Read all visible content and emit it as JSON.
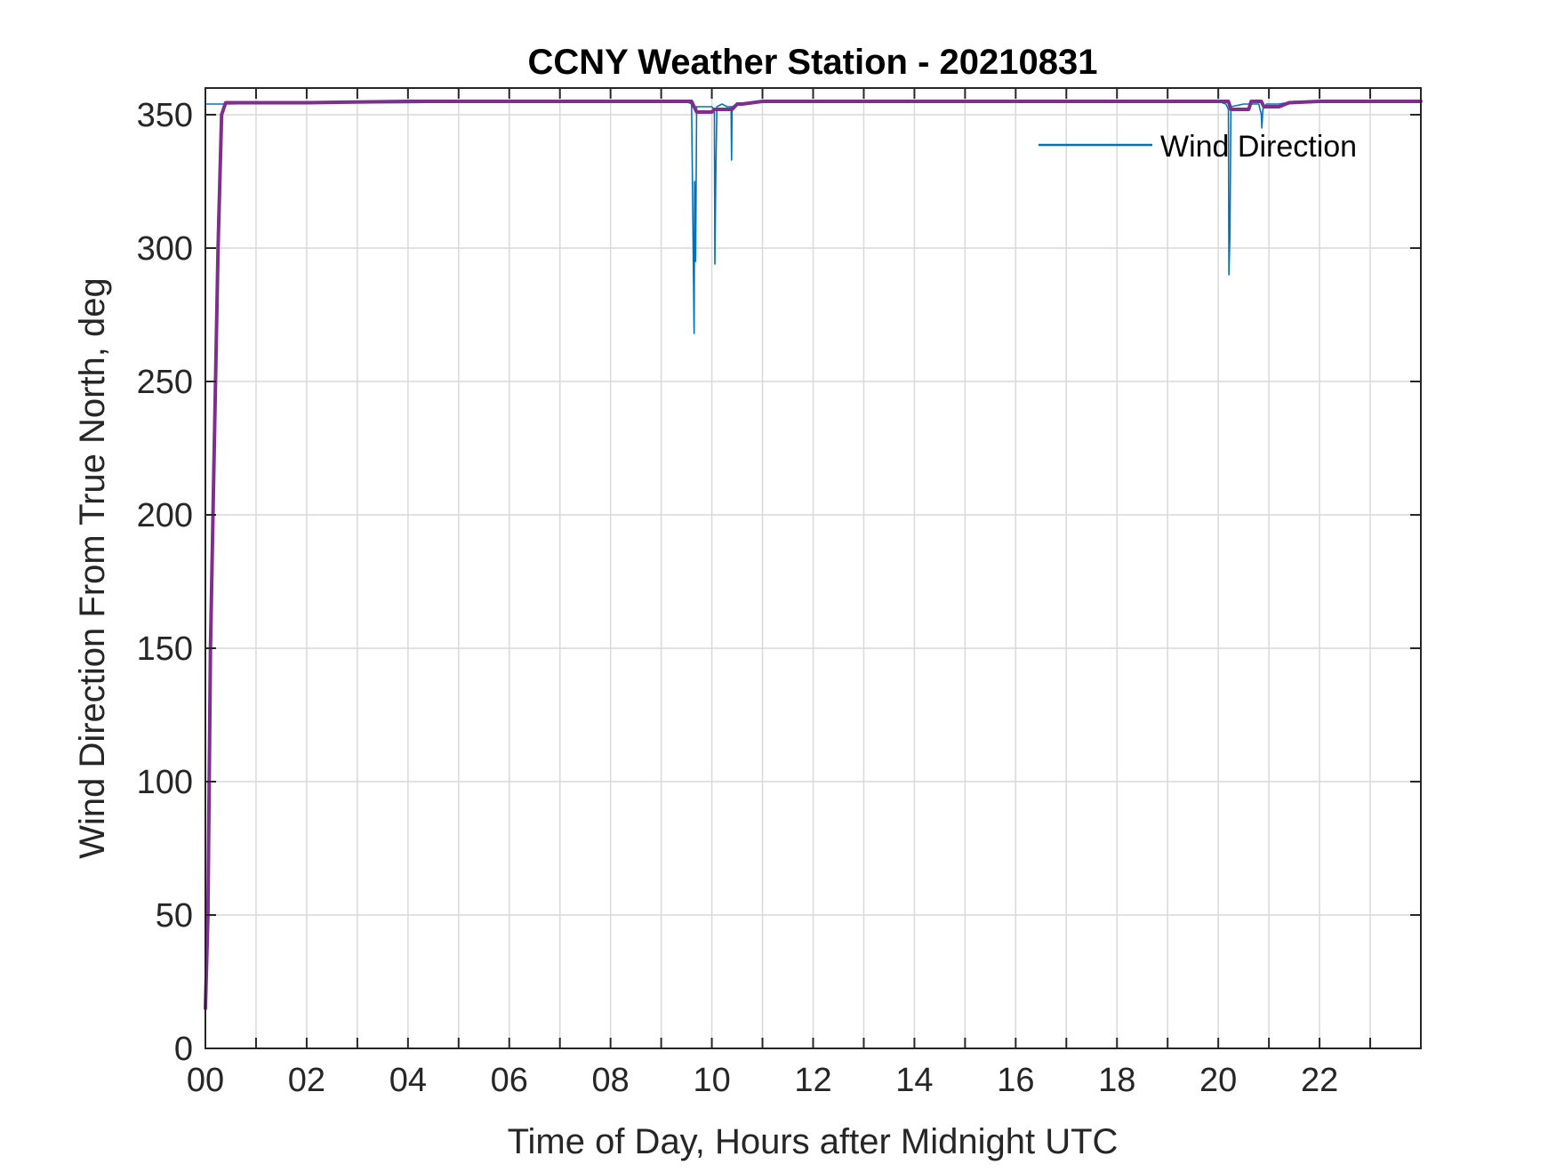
{
  "chart_data": {
    "type": "line",
    "title": "CCNY Weather Station - 20210831",
    "xlabel": "Time of Day, Hours after Midnight UTC",
    "ylabel": "Wind Direction From True North, deg",
    "xlim": [
      0,
      24
    ],
    "ylim": [
      0,
      360
    ],
    "x_ticks": [
      0,
      2,
      4,
      6,
      8,
      10,
      12,
      14,
      16,
      18,
      20,
      22
    ],
    "x_tick_labels": [
      "00",
      "02",
      "04",
      "06",
      "08",
      "10",
      "12",
      "14",
      "16",
      "18",
      "20",
      "22"
    ],
    "y_ticks": [
      0,
      50,
      100,
      150,
      200,
      250,
      300,
      350
    ],
    "y_tick_labels": [
      "0",
      "50",
      "100",
      "150",
      "200",
      "250",
      "300",
      "350"
    ],
    "grid": true,
    "legend_position": "top-right",
    "series": [
      {
        "name": "Wind Direction",
        "color": "#0072bd",
        "width": 1.6,
        "x": [
          0,
          0.3,
          0.4,
          2.0,
          4.0,
          6.0,
          8.0,
          9.5,
          9.6,
          9.65,
          9.66,
          9.68,
          9.7,
          9.72,
          9.9,
          10.0,
          10.05,
          10.06,
          10.08,
          10.1,
          10.2,
          10.3,
          10.38,
          10.39,
          10.4,
          10.5,
          10.7,
          11.0,
          12.0,
          14.0,
          16.0,
          18.0,
          20.0,
          20.15,
          20.2,
          20.21,
          20.23,
          20.25,
          20.5,
          20.8,
          20.85,
          20.86,
          20.88,
          20.95,
          21.2,
          21.5,
          22.0,
          24.0
        ],
        "y": [
          354,
          354,
          354,
          354.5,
          354.5,
          355,
          355,
          355,
          354,
          268,
          325,
          295,
          353,
          353,
          353,
          353,
          352,
          294,
          330,
          353,
          354,
          353,
          353,
          333,
          353,
          354,
          354,
          355,
          355,
          355,
          355,
          355,
          355,
          354,
          352,
          290,
          305,
          353,
          354,
          354,
          350,
          345,
          352,
          354,
          354,
          355,
          355,
          355
        ]
      },
      {
        "name": "",
        "color": "#7e2f8e",
        "width": 4,
        "x": [
          0,
          0.05,
          0.1,
          0.18,
          0.25,
          0.32,
          0.4,
          1.0,
          2.0,
          4.0,
          6.0,
          8.0,
          9.6,
          9.7,
          10.0,
          10.05,
          10.1,
          10.4,
          10.5,
          10.6,
          11.0,
          12.0,
          14.0,
          16.0,
          18.0,
          20.0,
          20.2,
          20.25,
          20.6,
          20.65,
          20.85,
          20.9,
          21.2,
          21.4,
          22.0,
          24.0
        ],
        "y": [
          15,
          50,
          150,
          230,
          300,
          350,
          354.5,
          354.5,
          354.5,
          355,
          355,
          355,
          355,
          351,
          351,
          352,
          352,
          352,
          354,
          354,
          355,
          355,
          355,
          355,
          355,
          355,
          355,
          352,
          352,
          355,
          355,
          353,
          353,
          354.5,
          355,
          355
        ]
      }
    ]
  }
}
